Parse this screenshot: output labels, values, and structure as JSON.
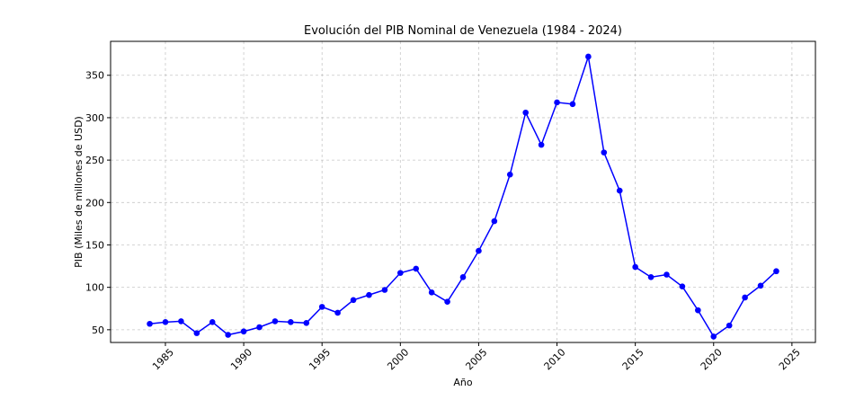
{
  "chart_data": {
    "type": "line",
    "title": "Evolución del PIB Nominal de Venezuela (1984 - 2024)",
    "xlabel": "Año",
    "ylabel": "PIB (Miles de millones de USD)",
    "xlim": [
      1981.5,
      2026.5
    ],
    "ylim": [
      35,
      390
    ],
    "grid": true,
    "x_ticks": [
      1985,
      1990,
      1995,
      2000,
      2005,
      2010,
      2015,
      2020,
      2025
    ],
    "y_ticks": [
      50,
      100,
      150,
      200,
      250,
      300,
      350
    ],
    "series": [
      {
        "name": "PIB",
        "color": "#0000ff",
        "x": [
          1984,
          1985,
          1986,
          1987,
          1988,
          1989,
          1990,
          1991,
          1992,
          1993,
          1994,
          1995,
          1996,
          1997,
          1998,
          1999,
          2000,
          2001,
          2002,
          2003,
          2004,
          2005,
          2006,
          2007,
          2008,
          2009,
          2010,
          2011,
          2012,
          2013,
          2014,
          2015,
          2016,
          2017,
          2018,
          2019,
          2020,
          2021,
          2022,
          2023,
          2024
        ],
        "y": [
          57,
          59,
          60,
          46,
          59,
          44,
          48,
          53,
          60,
          59,
          58,
          77,
          70,
          85,
          91,
          97,
          117,
          122,
          94,
          83,
          112,
          143,
          178,
          233,
          306,
          268,
          318,
          316,
          372,
          259,
          214,
          124,
          112,
          115,
          101,
          73,
          42,
          55,
          88,
          102,
          119
        ]
      }
    ]
  }
}
